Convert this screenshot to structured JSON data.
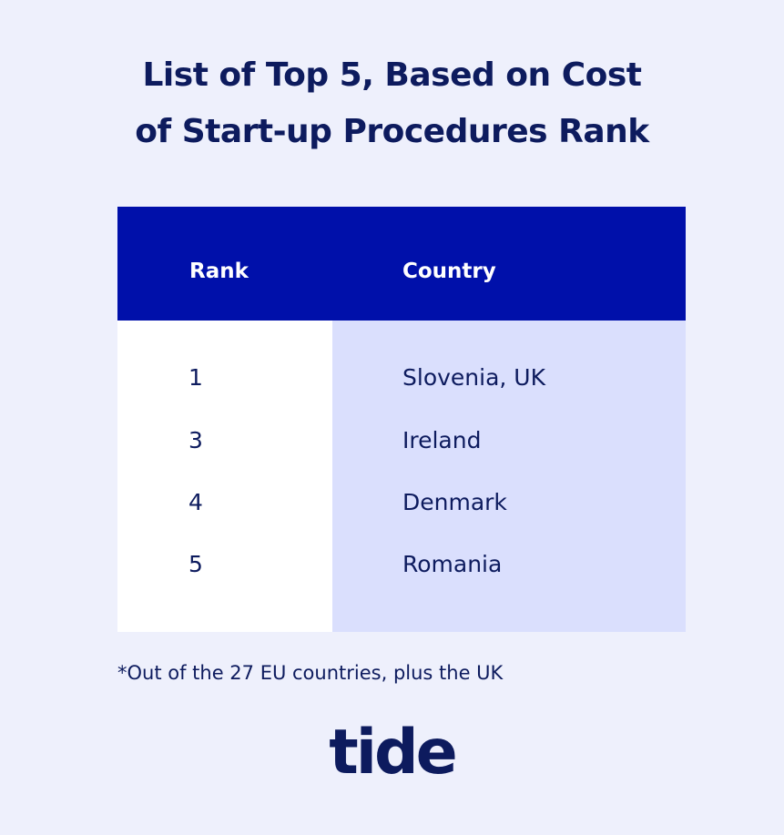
{
  "title": {
    "line1": "List of Top 5, Based on Cost",
    "line2": "of Start-up Procedures Rank"
  },
  "table": {
    "headers": {
      "rank": "Rank",
      "country": "Country"
    },
    "rows": [
      {
        "rank": "1",
        "country": "Slovenia, UK"
      },
      {
        "rank": "3",
        "country": "Ireland"
      },
      {
        "rank": "4",
        "country": "Denmark"
      },
      {
        "rank": "5",
        "country": "Romania"
      }
    ]
  },
  "footnote": "*Out of the 27 EU countries, plus the UK",
  "logo": "tide",
  "colors": {
    "background": "#eef0fc",
    "header": "#0010aa",
    "country_column": "#dadffd",
    "text": "#0d1b5e"
  },
  "chart_data": {
    "type": "table",
    "title": "List of Top 5, Based on Cost of Start-up Procedures Rank",
    "columns": [
      "Rank",
      "Country"
    ],
    "rows": [
      [
        "1",
        "Slovenia, UK"
      ],
      [
        "3",
        "Ireland"
      ],
      [
        "4",
        "Denmark"
      ],
      [
        "5",
        "Romania"
      ]
    ]
  }
}
